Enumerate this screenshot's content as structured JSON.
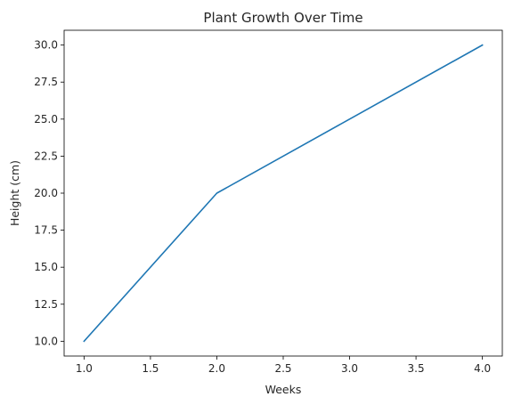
{
  "chart_data": {
    "type": "line",
    "title": "Plant Growth Over Time",
    "xlabel": "Weeks",
    "ylabel": "Height (cm)",
    "x": [
      1,
      2,
      3,
      4
    ],
    "series": [
      {
        "values": [
          10,
          20,
          25,
          30
        ],
        "color": "#1f77b4"
      }
    ],
    "xlim": [
      0.85,
      4.15
    ],
    "ylim": [
      9.0,
      31.0
    ],
    "xticks": [
      1.0,
      1.5,
      2.0,
      2.5,
      3.0,
      3.5,
      4.0
    ],
    "xtick_labels": [
      "1.0",
      "1.5",
      "2.0",
      "2.5",
      "3.0",
      "3.5",
      "4.0"
    ],
    "yticks": [
      10.0,
      12.5,
      15.0,
      17.5,
      20.0,
      22.5,
      25.0,
      27.5,
      30.0
    ],
    "ytick_labels": [
      "10.0",
      "12.5",
      "15.0",
      "17.5",
      "20.0",
      "22.5",
      "25.0",
      "27.5",
      "30.0"
    ],
    "grid": false,
    "legend": false
  }
}
